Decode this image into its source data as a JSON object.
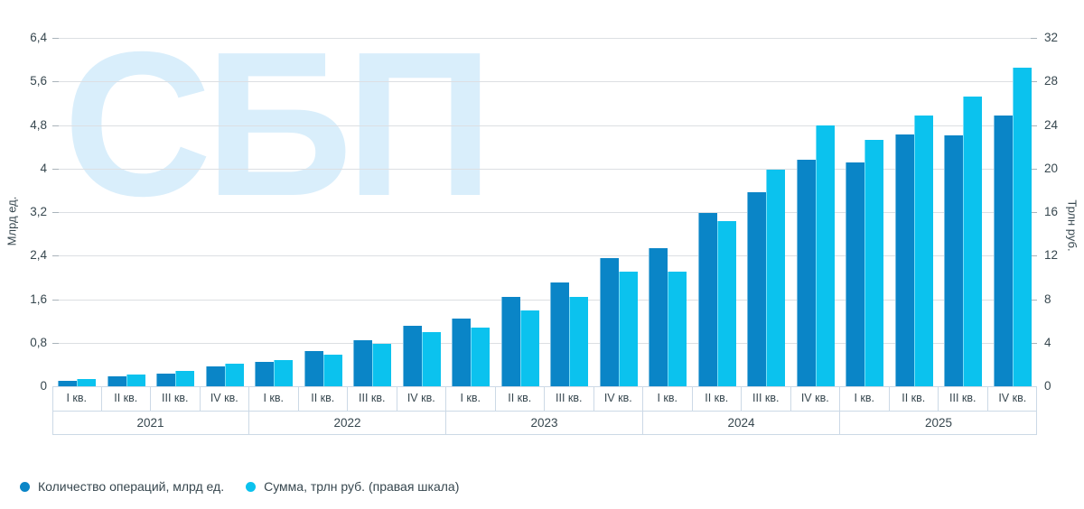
{
  "watermark": "СБП",
  "left_axis": {
    "title": "Млрд ед.",
    "ticks": [
      "0",
      "0,8",
      "1,6",
      "2,4",
      "3,2",
      "4",
      "4,8",
      "5,6",
      "6,4"
    ],
    "max": 6.4
  },
  "right_axis": {
    "title": "Трлн руб.",
    "ticks": [
      "0",
      "4",
      "8",
      "12",
      "16",
      "20",
      "24",
      "28",
      "32"
    ],
    "max": 32
  },
  "legend": [
    {
      "label": "Количество операций, млрд ед.",
      "color": "#0a85c7"
    },
    {
      "label": "Сумма, трлн руб. (правая шкала)",
      "color": "#0bc2ee"
    }
  ],
  "colors": {
    "bar_operations": "#0a85c7",
    "bar_sum": "#0bc2ee",
    "gridline": "#dcdfe3",
    "axis_text": "#37474f",
    "table_border": "#ccd9e6",
    "watermark": "#d9eefb"
  },
  "chart_data": {
    "type": "bar",
    "title": "",
    "xlabel": "",
    "ylabel_left": "Млрд ед.",
    "ylabel_right": "Трлн руб.",
    "grid": true,
    "legend_position": "bottom-left",
    "left_ylim": [
      0,
      6.4
    ],
    "right_ylim": [
      0,
      32
    ],
    "years": [
      {
        "year": "2021",
        "quarters": [
          "I кв.",
          "II кв.",
          "III кв.",
          "IV кв."
        ]
      },
      {
        "year": "2022",
        "quarters": [
          "I кв.",
          "II кв.",
          "III кв.",
          "IV кв."
        ]
      },
      {
        "year": "2023",
        "quarters": [
          "I кв.",
          "II кв.",
          "III кв.",
          "IV кв."
        ]
      },
      {
        "year": "2024",
        "quarters": [
          "I кв.",
          "II кв.",
          "III кв.",
          "IV кв."
        ]
      },
      {
        "year": "2025",
        "quarters": [
          "I кв.",
          "II кв.",
          "III кв.",
          "IV кв."
        ]
      }
    ],
    "series": [
      {
        "name": "Количество операций, млрд ед.",
        "axis": "left",
        "color": "#0a85c7",
        "values": [
          0.1,
          0.18,
          0.24,
          0.37,
          0.45,
          0.64,
          0.84,
          1.11,
          1.25,
          1.65,
          1.9,
          2.35,
          2.53,
          3.18,
          3.56,
          4.17,
          4.12,
          4.63,
          4.61,
          4.97
        ]
      },
      {
        "name": "Сумма, трлн руб. (правая шкала)",
        "axis": "right",
        "color": "#0bc2ee",
        "values": [
          0.7,
          1.1,
          1.4,
          2.1,
          2.4,
          2.9,
          3.9,
          5.0,
          5.4,
          7.0,
          8.2,
          10.5,
          10.5,
          15.2,
          19.9,
          24.0,
          22.6,
          24.9,
          26.6,
          29.3
        ]
      }
    ]
  }
}
